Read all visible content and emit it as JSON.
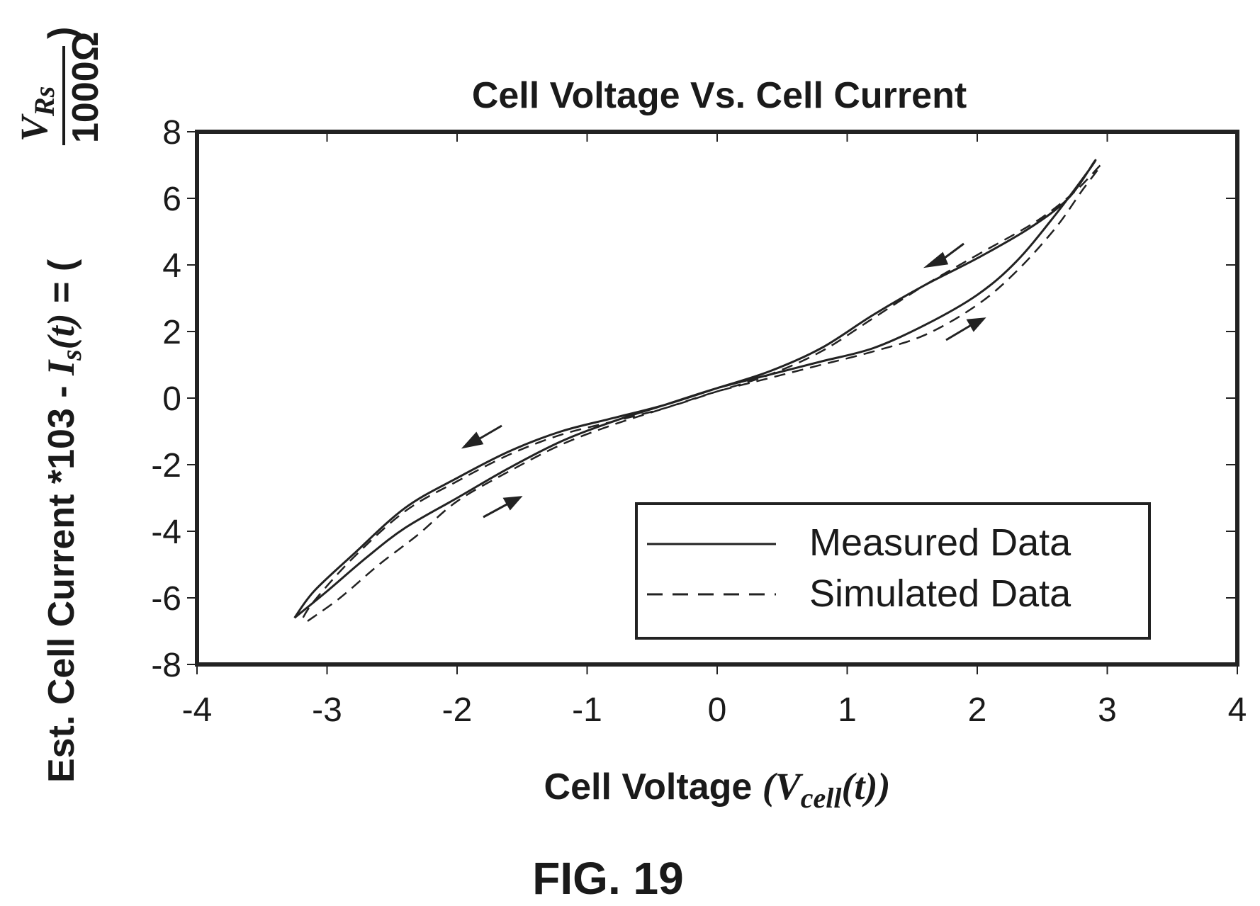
{
  "chart_data": {
    "type": "line",
    "title": "Cell Voltage Vs. Cell Current",
    "xlabel": {
      "main": "Cell Voltage",
      "symbol_open": "(V",
      "symbol_sub": "cell",
      "symbol_close": "(t))"
    },
    "ylabel": {
      "main": "Est. Cell Current *103 - ",
      "symbol": "I",
      "symbol_sub": "s",
      "symbol_rest": "(t)",
      "eq": " = (",
      "frac_num": "V",
      "frac_num_sub": "Rs",
      "frac_den": "1000Ω",
      "close": ")"
    },
    "xlim": [
      -4,
      4
    ],
    "ylim": [
      -8,
      8
    ],
    "xticks": [
      "-4",
      "-3",
      "-2",
      "-1",
      "0",
      "1",
      "2",
      "3",
      "4"
    ],
    "yticks": [
      "8",
      "6",
      "4",
      "2",
      "0",
      "-2",
      "-4",
      "-6",
      "-8"
    ],
    "grid": false,
    "legend_position": "bottom-right",
    "series": [
      {
        "name": "Measured Data",
        "style": "solid",
        "x": [
          -3.25,
          -3.0,
          -2.7,
          -2.4,
          -2.0,
          -1.6,
          -1.2,
          -0.8,
          -0.4,
          0.0,
          0.4,
          0.8,
          1.2,
          1.6,
          2.0,
          2.3,
          2.6,
          2.85,
          2.9,
          2.7,
          2.4,
          2.0,
          1.6,
          1.2,
          0.8,
          0.4,
          0.0,
          -0.4,
          -0.8,
          -1.2,
          -1.6,
          -2.0,
          -2.4,
          -2.8,
          -3.1,
          -3.25
        ],
        "y": [
          -6.6,
          -5.8,
          -4.8,
          -3.9,
          -3.0,
          -2.1,
          -1.3,
          -0.7,
          -0.2,
          0.3,
          0.7,
          1.1,
          1.5,
          2.2,
          3.1,
          4.1,
          5.5,
          6.8,
          7.1,
          6.0,
          5.1,
          4.2,
          3.4,
          2.5,
          1.5,
          0.8,
          0.3,
          -0.2,
          -0.6,
          -1.0,
          -1.6,
          -2.4,
          -3.3,
          -4.7,
          -5.8,
          -6.6
        ]
      },
      {
        "name": "Simulated Data",
        "style": "dashed",
        "x": [
          -3.15,
          -2.9,
          -2.6,
          -2.3,
          -2.0,
          -1.6,
          -1.2,
          -0.8,
          -0.4,
          0.0,
          0.4,
          0.8,
          1.2,
          1.6,
          2.0,
          2.3,
          2.6,
          2.8,
          2.95,
          2.75,
          2.45,
          2.0,
          1.6,
          1.2,
          0.8,
          0.4,
          0.0,
          -0.4,
          -0.8,
          -1.2,
          -1.6,
          -2.0,
          -2.4,
          -2.8,
          -3.1,
          -3.2
        ],
        "y": [
          -6.7,
          -6.0,
          -5.0,
          -4.1,
          -3.1,
          -2.2,
          -1.4,
          -0.8,
          -0.3,
          0.2,
          0.6,
          1.0,
          1.4,
          1.9,
          2.8,
          3.8,
          5.1,
          6.2,
          7.0,
          6.2,
          5.3,
          4.3,
          3.4,
          2.4,
          1.4,
          0.7,
          0.2,
          -0.3,
          -0.7,
          -1.1,
          -1.7,
          -2.5,
          -3.4,
          -4.8,
          -6.1,
          -6.7
        ]
      }
    ]
  },
  "figure_label": "FIG. 19"
}
